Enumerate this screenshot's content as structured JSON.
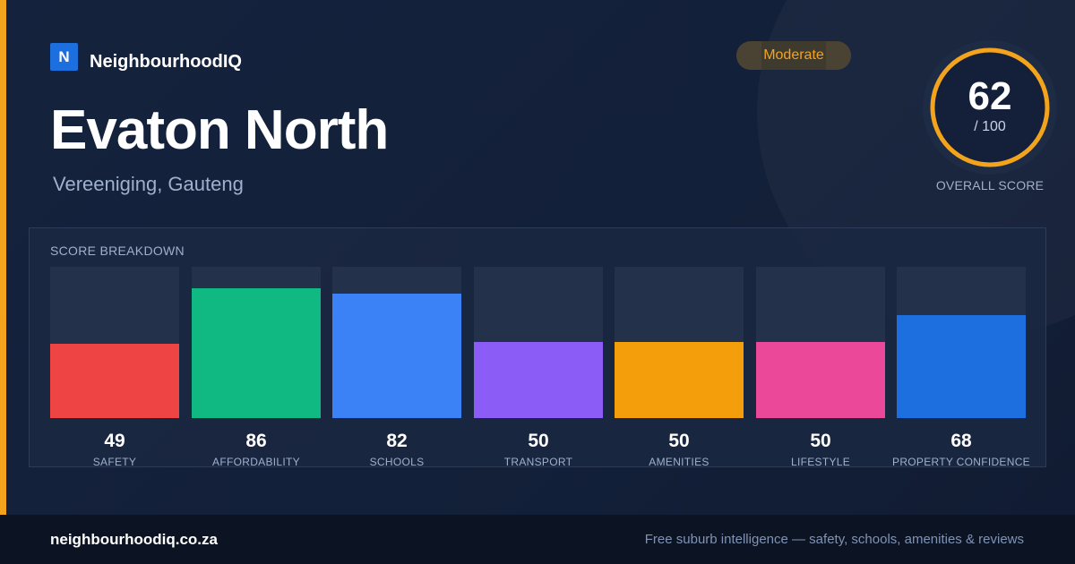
{
  "brand": {
    "logo_letter": "N",
    "name": "NeighbourhoodIQ"
  },
  "suburb": {
    "name": "Evaton North",
    "location": "Vereeniging, Gauteng"
  },
  "rating_badge": "Moderate",
  "overall": {
    "score": "62",
    "max": "/ 100",
    "caption": "OVERALL SCORE",
    "fraction": 0.62
  },
  "colors": {
    "accent": "#f4a31c",
    "brand_blue": "#1d6fe0",
    "background": "#14203a"
  },
  "breakdown": {
    "title": "SCORE BREAKDOWN",
    "items": [
      {
        "label": "SAFETY",
        "value": "49",
        "score": 49,
        "color": "#ef4444"
      },
      {
        "label": "AFFORDABILITY",
        "value": "86",
        "score": 86,
        "color": "#10b981"
      },
      {
        "label": "SCHOOLS",
        "value": "82",
        "score": 82,
        "color": "#3b82f6"
      },
      {
        "label": "TRANSPORT",
        "value": "50",
        "score": 50,
        "color": "#8b5cf6"
      },
      {
        "label": "AMENITIES",
        "value": "50",
        "score": 50,
        "color": "#f59e0b"
      },
      {
        "label": "LIFESTYLE",
        "value": "50",
        "score": 50,
        "color": "#ec4899"
      },
      {
        "label": "PROPERTY CONFIDENCE",
        "value": "68",
        "score": 68,
        "color": "#1d6fe0"
      }
    ]
  },
  "footer": {
    "domain": "neighbourhoodiq.co.za",
    "tagline": "Free suburb intelligence — safety, schools, amenities & reviews"
  }
}
